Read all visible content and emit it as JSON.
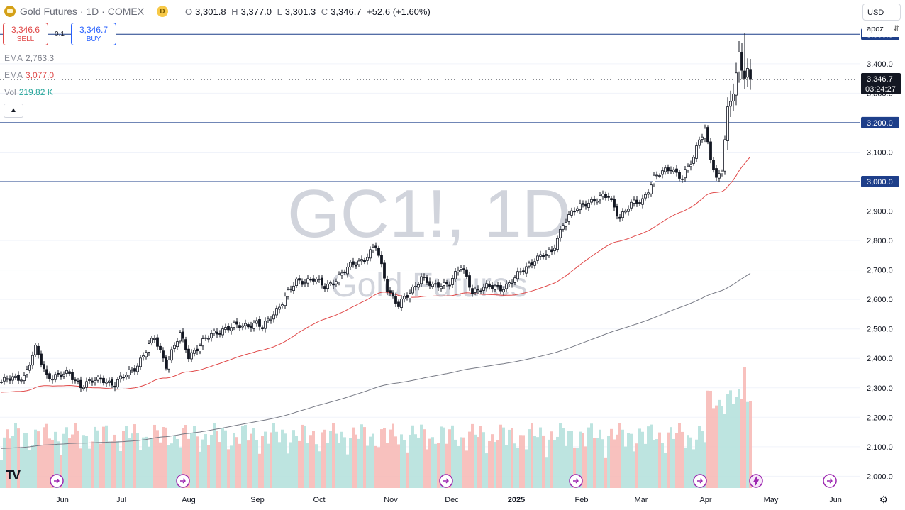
{
  "header": {
    "title": "Gold Futures · 1D · COMEX",
    "status_badge": "D",
    "open_key": "O",
    "open": "3,301.8",
    "high_key": "H",
    "high": "3,377.0",
    "low_key": "L",
    "low": "3,301.3",
    "close_key": "C",
    "close": "3,346.7",
    "change": "+52.6 (+1.60%)"
  },
  "trade": {
    "sell_price": "3,346.6",
    "sell_label": "SELL",
    "spread": "0.1",
    "buy_price": "3,346.7",
    "buy_label": "BUY"
  },
  "indicators": [
    {
      "name": "EMA",
      "value": "2,763.3",
      "color": "#787b86"
    },
    {
      "name": "EMA",
      "value": "3,077.0",
      "color": "#e04848"
    },
    {
      "name": "Vol",
      "value": "219.82 K",
      "color": "#26a69a"
    }
  ],
  "toolbar": {
    "currency": "USD",
    "scale_mode": "apoz"
  },
  "colors": {
    "up": "#131722",
    "down": "#131722",
    "ema_fast": "#e04848",
    "ema_slow": "#787b86",
    "level_line": "#2962ff",
    "vol_up": "#b2dfdb",
    "vol_down": "#f7b6b3",
    "watermark": "#d1d4dc"
  },
  "icons": {
    "collapse": "chevron-up-icon",
    "event": "arrow-right-circle-icon",
    "event_dividend": "lightning-circle-icon",
    "settings": "gear-icon",
    "logo": "tradingview-logo-icon"
  },
  "chart_data": {
    "type": "candlestick",
    "watermark_symbol": "GC1!, 1D",
    "watermark_name": "Gold Futures",
    "y_axis": {
      "range": [
        1960,
        3520
      ],
      "ticks": [
        "2,000.0",
        "2,100.0",
        "2,200.0",
        "2,300.0",
        "2,400.0",
        "2,500.0",
        "2,600.0",
        "2,700.0",
        "2,800.0",
        "2,900.0",
        "3,000.0",
        "3,100.0",
        "3,200.0",
        "3,300.0",
        "3,400.0",
        "3,500.0"
      ]
    },
    "x_axis": {
      "ticks": [
        "Jun",
        "Jul",
        "Aug",
        "Sep",
        "Oct",
        "Nov",
        "Dec",
        "2025",
        "Feb",
        "Mar",
        "Apr",
        "May",
        "Jun"
      ]
    },
    "horizontal_levels": [
      {
        "value": 3500,
        "label": "3,500.0"
      },
      {
        "value": 3200,
        "label": "3,200.0"
      },
      {
        "value": 3000,
        "label": "3,000.0"
      }
    ],
    "last_price": {
      "value": 3346.7,
      "label": "3,346.7",
      "countdown": "03:24:27"
    },
    "price_anchors": [
      [
        0,
        2320
      ],
      [
        8,
        2340
      ],
      [
        12,
        2430
      ],
      [
        16,
        2340
      ],
      [
        24,
        2345
      ],
      [
        28,
        2310
      ],
      [
        36,
        2330
      ],
      [
        40,
        2310
      ],
      [
        48,
        2380
      ],
      [
        54,
        2470
      ],
      [
        58,
        2380
      ],
      [
        63,
        2480
      ],
      [
        66,
        2410
      ],
      [
        74,
        2480
      ],
      [
        78,
        2500
      ],
      [
        84,
        2510
      ],
      [
        90,
        2520
      ],
      [
        92,
        2500
      ],
      [
        98,
        2580
      ],
      [
        104,
        2660
      ],
      [
        110,
        2670
      ],
      [
        114,
        2640
      ],
      [
        118,
        2670
      ],
      [
        124,
        2720
      ],
      [
        128,
        2740
      ],
      [
        132,
        2780
      ],
      [
        136,
        2640
      ],
      [
        140,
        2580
      ],
      [
        144,
        2620
      ],
      [
        148,
        2680
      ],
      [
        152,
        2640
      ],
      [
        158,
        2660
      ],
      [
        162,
        2710
      ],
      [
        166,
        2630
      ],
      [
        170,
        2640
      ],
      [
        176,
        2640
      ],
      [
        180,
        2660
      ],
      [
        184,
        2700
      ],
      [
        188,
        2740
      ],
      [
        192,
        2750
      ],
      [
        194,
        2760
      ],
      [
        198,
        2860
      ],
      [
        202,
        2900
      ],
      [
        206,
        2930
      ],
      [
        210,
        2940
      ],
      [
        214,
        2950
      ],
      [
        218,
        2880
      ],
      [
        222,
        2920
      ],
      [
        226,
        2940
      ],
      [
        230,
        3010
      ],
      [
        236,
        3050
      ],
      [
        240,
        3010
      ],
      [
        244,
        3080
      ],
      [
        246,
        3150
      ],
      [
        248,
        3180
      ],
      [
        250,
        3080
      ],
      [
        252,
        3000
      ],
      [
        254,
        3040
      ],
      [
        256,
        3250
      ],
      [
        258,
        3310
      ],
      [
        260,
        3410
      ],
      [
        262,
        3350
      ],
      [
        264,
        3346.7
      ]
    ],
    "ema_fast": {
      "label": "EMA",
      "last": 3077.0
    },
    "ema_slow": {
      "label": "EMA",
      "last": 2763.3
    },
    "volume": {
      "label": "Vol",
      "last": "219.82 K"
    },
    "event_markers": 7
  }
}
